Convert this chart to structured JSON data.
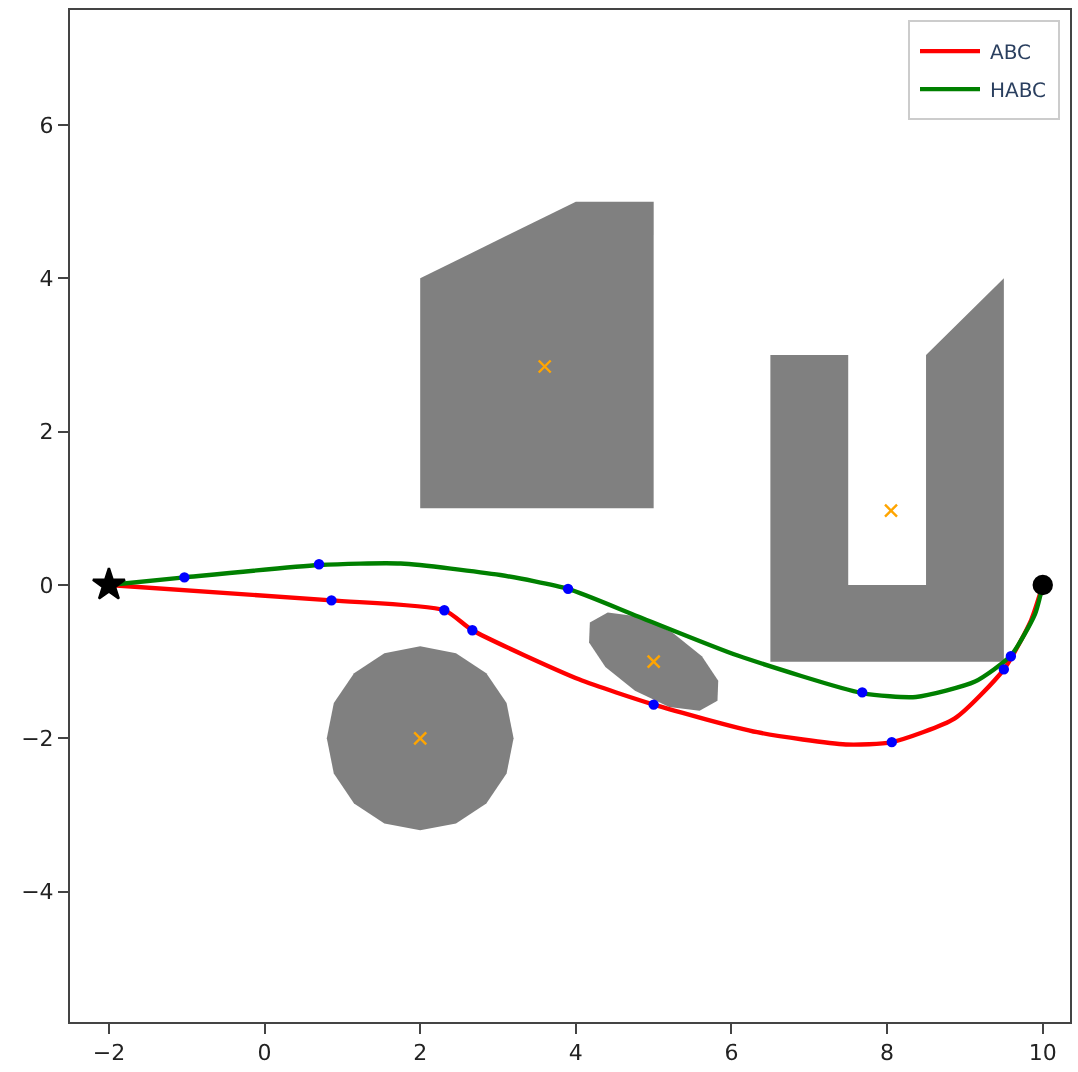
{
  "chart_data": {
    "type": "line",
    "xlim": [
      -2.5,
      10.35
    ],
    "ylim": [
      -5.7,
      7.5
    ],
    "xticks": [
      -2,
      0,
      2,
      4,
      6,
      8,
      10
    ],
    "yticks": [
      -4,
      -2,
      0,
      2,
      4,
      6
    ],
    "legend": "top right",
    "line_style": "solid",
    "series": [
      {
        "type": "area",
        "color": "#808080",
        "x": [
          2,
          2,
          4,
          5,
          5
        ],
        "values": [
          1,
          4,
          5,
          5,
          1
        ]
      },
      {
        "type": "area",
        "color": "#808080",
        "x": [
          6.5,
          6.5,
          7.5,
          7.5,
          8.5,
          8.5,
          9.5,
          9.5
        ],
        "values": [
          -1,
          3,
          3,
          0,
          0,
          3,
          4,
          -1
        ]
      },
      {
        "type": "area",
        "color": "#808080",
        "x": [
          3.2,
          3.11,
          2.85,
          2.46,
          2,
          1.54,
          1.15,
          0.89,
          0.8,
          0.89,
          1.15,
          1.54,
          2,
          2.46,
          2.85,
          3.11
        ],
        "values": [
          -2,
          -1.54,
          -1.15,
          -0.89,
          -0.8,
          -0.89,
          -1.15,
          -1.54,
          -2,
          -2.46,
          -2.85,
          -3.11,
          -3.2,
          -3.11,
          -2.85,
          -2.46
        ]
      },
      {
        "type": "area",
        "color": "#808080",
        "x": [
          5.82,
          5.83,
          5.62,
          5.24,
          4.8,
          4.41,
          4.18,
          4.17,
          4.38,
          4.76,
          5.2,
          5.59
        ],
        "values": [
          -1.51,
          -1.25,
          -0.93,
          -0.62,
          -0.41,
          -0.36,
          -0.49,
          -0.75,
          -1.07,
          -1.38,
          -1.59,
          -1.64
        ]
      },
      {
        "name": "ABC",
        "color": "#ff0000",
        "x": [
          -2,
          0.86,
          2.31,
          2.67,
          4.04,
          5,
          6.33,
          7.47,
          8.06,
          8.87,
          9.5,
          9.85,
          10
        ],
        "values": [
          0,
          -0.2,
          -0.33,
          -0.59,
          -1.23,
          -1.56,
          -1.92,
          -2.08,
          -2.05,
          -1.74,
          -1.1,
          -0.46,
          0
        ]
      },
      {
        "name": "HABC",
        "color": "#008000",
        "x": [
          -2,
          -1.03,
          0.7,
          1.75,
          3.03,
          3.9,
          4.8,
          6.08,
          7.68,
          8.37,
          9.13,
          9.59,
          9.9,
          10
        ],
        "values": [
          0,
          0.1,
          0.26,
          0.28,
          0.13,
          -0.05,
          -0.41,
          -0.92,
          -1.41,
          -1.46,
          -1.26,
          -0.92,
          -0.38,
          0
        ]
      },
      {
        "type": "scatter",
        "color": "#0000ff",
        "marker": "circle",
        "x": [
          0.86,
          2.31,
          2.67,
          5,
          8.06,
          9.5,
          -1.03,
          0.7,
          3.9,
          7.68,
          9.59
        ],
        "values": [
          -0.2,
          -0.33,
          -0.59,
          -1.56,
          -2.05,
          -1.1,
          0.1,
          0.27,
          -0.05,
          -1.4,
          -0.93
        ]
      },
      {
        "type": "scatter",
        "color": "#ffa500",
        "marker": "cross",
        "x": [
          2,
          3.6,
          5,
          8.05
        ],
        "values": [
          -2,
          2.85,
          -1,
          0.97
        ]
      },
      {
        "type": "scatter",
        "color": "#000000",
        "marker": "star",
        "x": [
          -2
        ],
        "values": [
          0
        ]
      },
      {
        "type": "scatter",
        "color": "#000000",
        "marker": "circle",
        "x": [
          10
        ],
        "values": [
          0
        ]
      }
    ]
  }
}
